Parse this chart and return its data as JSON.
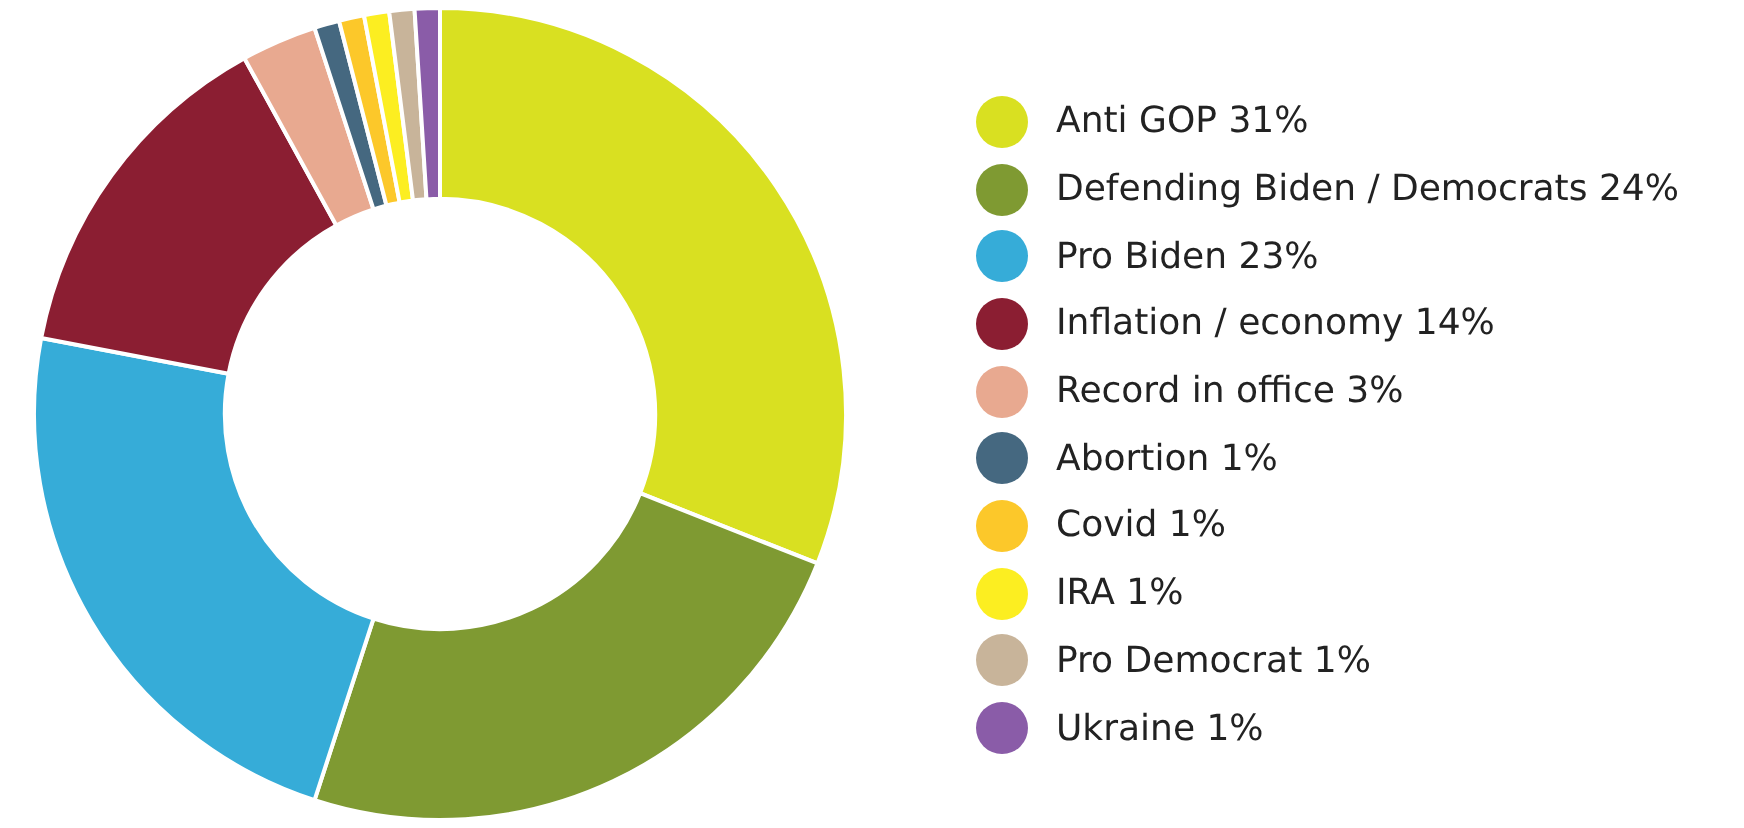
{
  "chart_data": {
    "type": "donut",
    "categories": [
      "Anti GOP",
      "Defending Biden / Democrats",
      "Pro Biden",
      "Inflation / economy",
      "Record in office",
      "Abortion",
      "Covid",
      "IRA",
      "Pro Democrat",
      "Ukraine"
    ],
    "values": [
      31,
      24,
      23,
      14,
      3,
      1,
      1,
      1,
      1,
      1
    ],
    "value_labels": [
      "31%",
      "24%",
      "23%",
      "14%",
      "3%",
      "1%",
      "1%",
      "1%",
      "1%",
      "1%"
    ],
    "colors": [
      "#d9e021",
      "#7f9a32",
      "#36acd8",
      "#8b1e32",
      "#e8a990",
      "#456880",
      "#fcc82a",
      "#fcee21",
      "#c8b49a",
      "#8a5ca8"
    ],
    "legend": "right"
  }
}
